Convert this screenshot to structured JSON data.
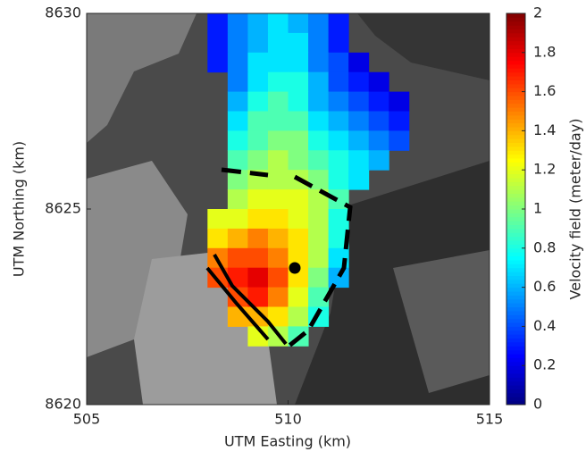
{
  "chart_data": {
    "type": "heatmap",
    "xlabel": "UTM Easting (km)",
    "ylabel": "UTM Northing (km)",
    "colorbar_label": "Velocity field (meter/day)",
    "xlim": [
      505,
      515
    ],
    "xticks": [
      505,
      510,
      515
    ],
    "ylim": [
      8620,
      8630
    ],
    "yticks": [
      8620,
      8625,
      8630
    ],
    "clim": [
      0,
      2
    ],
    "cticks": [
      0,
      0.2,
      0.4,
      0.6,
      0.8,
      1,
      1.2,
      1.4,
      1.6,
      1.8,
      2
    ],
    "colormap": "jet",
    "x": [
      507.75,
      508.25,
      508.75,
      509.25,
      509.75,
      510.25,
      510.75,
      511.25,
      511.75,
      512.25,
      512.75
    ],
    "y": [
      8629.75,
      8629.25,
      8628.75,
      8628.25,
      8627.75,
      8627.25,
      8626.75,
      8626.25,
      8625.75,
      8625.25,
      8624.75,
      8624.25,
      8623.75,
      8623.25,
      8622.75,
      8622.25,
      8621.75
    ],
    "values": [
      [
        null,
        0.3,
        0.5,
        0.6,
        0.7,
        0.6,
        0.5,
        0.3,
        null,
        null,
        null
      ],
      [
        null,
        0.3,
        0.5,
        0.6,
        0.7,
        0.7,
        0.5,
        0.3,
        null,
        null,
        null
      ],
      [
        null,
        0.3,
        0.5,
        0.7,
        0.7,
        0.7,
        0.5,
        0.4,
        0.2,
        null,
        null
      ],
      [
        null,
        null,
        0.5,
        0.7,
        0.8,
        0.8,
        0.6,
        0.4,
        0.3,
        0.2,
        null
      ],
      [
        null,
        null,
        0.6,
        0.8,
        0.9,
        0.8,
        0.6,
        0.5,
        0.4,
        0.3,
        0.2
      ],
      [
        null,
        null,
        0.7,
        0.9,
        0.9,
        0.9,
        0.7,
        0.6,
        0.5,
        0.4,
        0.3
      ],
      [
        null,
        null,
        0.8,
        0.9,
        1.0,
        1.0,
        0.8,
        0.7,
        0.6,
        0.5,
        0.4
      ],
      [
        null,
        null,
        0.9,
        1.0,
        1.1,
        1.0,
        0.9,
        0.8,
        0.7,
        0.6,
        null
      ],
      [
        null,
        null,
        1.0,
        1.1,
        1.1,
        1.1,
        1.0,
        0.8,
        0.7,
        null,
        null
      ],
      [
        null,
        null,
        1.1,
        1.2,
        1.2,
        1.2,
        1.1,
        0.9,
        null,
        null,
        null
      ],
      [
        null,
        1.2,
        1.2,
        1.3,
        1.3,
        1.2,
        1.1,
        0.8,
        null,
        null,
        null
      ],
      [
        null,
        1.3,
        1.4,
        1.5,
        1.4,
        1.3,
        1.1,
        0.8,
        null,
        null,
        null
      ],
      [
        null,
        1.5,
        1.6,
        1.6,
        1.5,
        1.3,
        1.1,
        0.7,
        null,
        null,
        null
      ],
      [
        null,
        1.6,
        1.7,
        1.8,
        1.6,
        1.3,
        1.0,
        0.6,
        null,
        null,
        null
      ],
      [
        null,
        null,
        1.6,
        1.7,
        1.5,
        1.2,
        0.9,
        null,
        null,
        null,
        null
      ],
      [
        null,
        null,
        1.4,
        1.4,
        1.3,
        1.1,
        0.8,
        null,
        null,
        null,
        null
      ],
      [
        null,
        null,
        null,
        1.2,
        1.1,
        0.9,
        null,
        null,
        null,
        null,
        null
      ]
    ]
  }
}
